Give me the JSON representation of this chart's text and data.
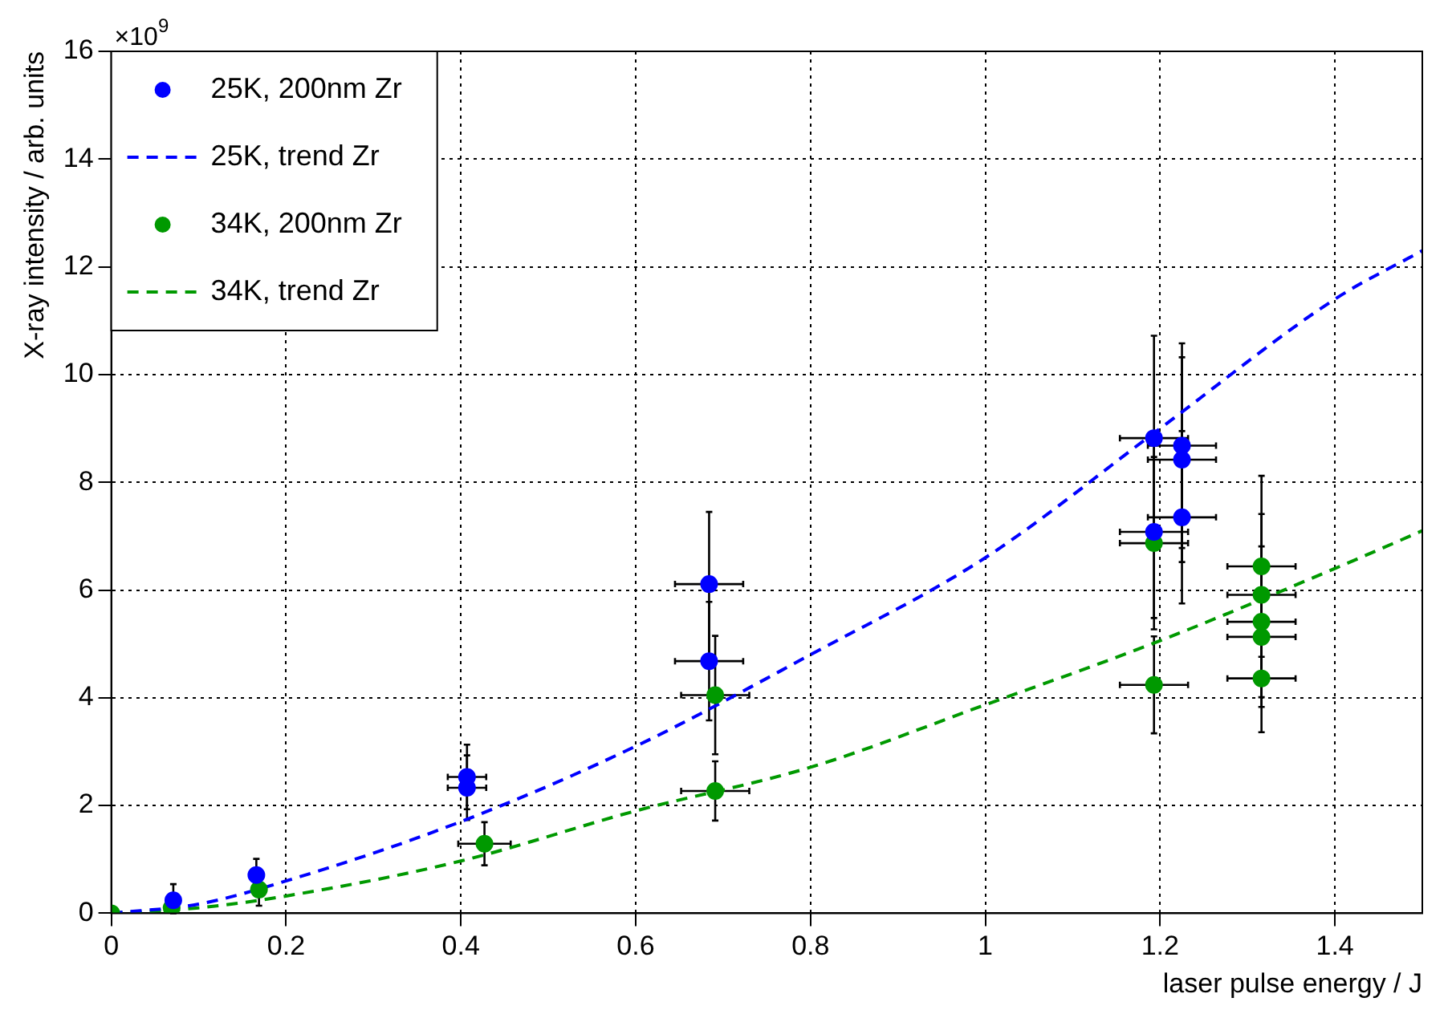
{
  "chart_data": {
    "type": "scatter",
    "xlabel": "laser pulse energy / J",
    "ylabel": "X-ray intensity / arb. units",
    "annotations": [
      "×10$^{9}$"
    ],
    "xlim": [
      0,
      1.5
    ],
    "xticks": [
      0,
      0.2,
      0.4,
      0.6,
      0.8,
      1,
      1.2,
      1.4
    ],
    "ylim": [
      0,
      16
    ],
    "yticks": [
      0,
      2,
      4,
      6,
      8,
      10,
      12,
      14,
      16
    ],
    "grid": true,
    "legend": "top left",
    "marker": "circle",
    "series": [
      {
        "name": "25K, 200nm Zr",
        "color": "#0000ff",
        "x": [
          0.071,
          0.166,
          0.407,
          0.407,
          0.684,
          0.684,
          1.193,
          1.193,
          1.225,
          1.225,
          1.225
        ],
        "values": [
          0.24,
          0.71,
          2.53,
          2.33,
          6.11,
          4.68,
          8.82,
          7.08,
          8.68,
          8.42,
          7.35
        ],
        "errors": [
          [
            0,
            0.54
          ],
          0.3,
          0.6,
          0.6,
          1.34,
          1.1,
          1.9,
          1.6,
          1.9,
          1.9,
          1.6
        ],
        "xerrors": [
          null,
          null,
          0.022,
          0.022,
          0.039,
          0.039,
          0.039,
          0.039,
          0.039,
          0.039,
          0.039
        ]
      },
      {
        "name": "25K, trend Zr",
        "type": "line",
        "line_style": "dashed",
        "marker": "none",
        "color": "#0000ff",
        "x": [
          0,
          0.1,
          0.2,
          0.4,
          0.6,
          0.8,
          1.0,
          1.2,
          1.4,
          1.5
        ],
        "values": [
          0,
          0.17,
          0.6,
          1.7,
          3.1,
          4.8,
          6.6,
          9.0,
          11.4,
          12.3
        ]
      },
      {
        "name": "34K, 200nm Zr",
        "color": "#009900",
        "x": [
          0,
          0.069,
          0.169,
          0.427,
          0.691,
          0.691,
          1.193,
          1.193,
          1.316,
          1.316,
          1.316,
          1.316,
          1.316
        ],
        "values": [
          0,
          0.1,
          0.44,
          1.29,
          4.05,
          2.27,
          6.87,
          4.24,
          6.44,
          5.91,
          5.41,
          5.13,
          4.36
        ],
        "errors": [
          null,
          null,
          0.3,
          0.4,
          1.1,
          0.55,
          1.6,
          0.9,
          1.68,
          1.5,
          1.4,
          1.3,
          1.0
        ],
        "xerrors": [
          null,
          null,
          null,
          0.03,
          0.039,
          0.039,
          0.039,
          0.039,
          0.039,
          0.039,
          0.039,
          0.039,
          0.039
        ]
      },
      {
        "name": "34K, trend Zr",
        "type": "line",
        "line_style": "dashed",
        "marker": "none",
        "color": "#009900",
        "x": [
          0,
          0.1,
          0.2,
          0.4,
          0.6,
          0.8,
          1.0,
          1.2,
          1.4,
          1.5
        ],
        "values": [
          0,
          0.1,
          0.32,
          0.97,
          1.9,
          2.71,
          3.87,
          5.06,
          6.4,
          7.1
        ]
      }
    ]
  }
}
